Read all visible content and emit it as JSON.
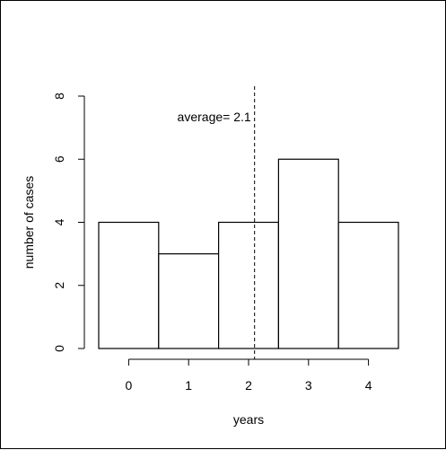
{
  "chart_data": {
    "type": "bar",
    "categories": [
      "0",
      "1",
      "2",
      "3",
      "4"
    ],
    "values": [
      4,
      3,
      4,
      6,
      4
    ],
    "xlabel": "years",
    "ylabel": "number of cases",
    "x_ticks": [
      "0",
      "1",
      "2",
      "3",
      "4"
    ],
    "y_ticks": [
      "0",
      "2",
      "4",
      "6",
      "8"
    ],
    "ylim": [
      0,
      8
    ],
    "xlim": [
      -0.5,
      4.5
    ],
    "grid": false,
    "average": {
      "value": 2.1,
      "label": "average= 2.1",
      "style": "dashed"
    },
    "colors": {
      "bar_fill": "#ffffff",
      "bar_stroke": "#000000",
      "line": "#000000"
    }
  }
}
